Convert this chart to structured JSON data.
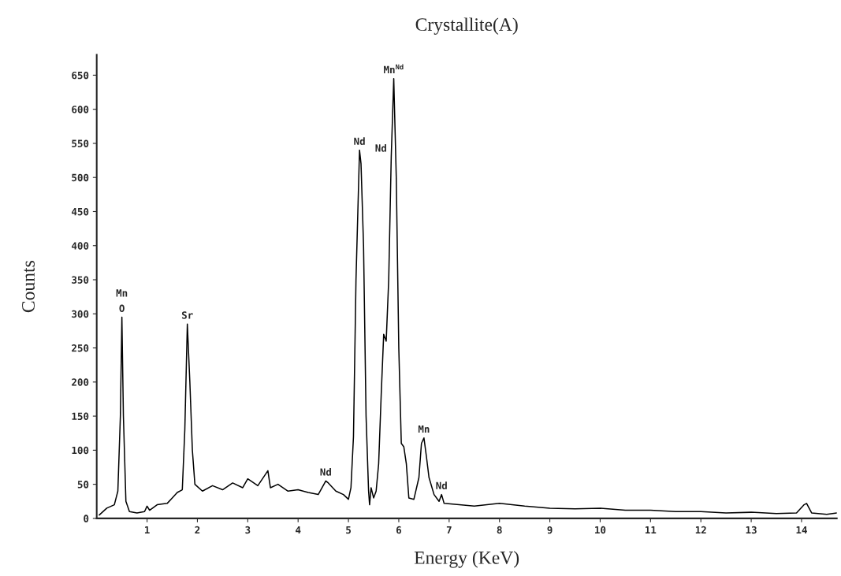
{
  "chart_data": {
    "type": "line",
    "title": "Crystallite(A)",
    "xlabel": "Energy (KeV)",
    "ylabel": "Counts",
    "x": [
      0.05,
      0.2,
      0.35,
      0.42,
      0.47,
      0.5,
      0.53,
      0.58,
      0.65,
      0.8,
      0.95,
      1.0,
      1.05,
      1.2,
      1.4,
      1.5,
      1.6,
      1.7,
      1.75,
      1.8,
      1.85,
      1.9,
      1.95,
      2.1,
      2.3,
      2.5,
      2.7,
      2.9,
      3.0,
      3.2,
      3.4,
      3.45,
      3.6,
      3.8,
      4.0,
      4.2,
      4.4,
      4.55,
      4.6,
      4.75,
      4.9,
      5.0,
      5.05,
      5.1,
      5.15,
      5.22,
      5.25,
      5.3,
      5.35,
      5.4,
      5.42,
      5.45,
      5.5,
      5.55,
      5.6,
      5.65,
      5.7,
      5.75,
      5.8,
      5.85,
      5.9,
      5.95,
      6.0,
      6.05,
      6.1,
      6.15,
      6.2,
      6.3,
      6.4,
      6.45,
      6.5,
      6.55,
      6.6,
      6.7,
      6.8,
      6.85,
      6.9,
      7.2,
      7.5,
      8.0,
      8.5,
      9.0,
      9.5,
      10.0,
      10.5,
      11.0,
      11.5,
      12.0,
      12.5,
      13.0,
      13.5,
      13.9,
      14.05,
      14.1,
      14.2,
      14.5,
      14.7
    ],
    "series": [
      {
        "color": "#000000",
        "values": [
          5,
          15,
          20,
          40,
          150,
          295,
          150,
          25,
          10,
          8,
          10,
          18,
          12,
          20,
          22,
          30,
          38,
          42,
          130,
          285,
          200,
          100,
          50,
          40,
          48,
          42,
          52,
          45,
          58,
          48,
          70,
          45,
          50,
          40,
          42,
          38,
          35,
          55,
          52,
          40,
          35,
          28,
          45,
          120,
          350,
          540,
          520,
          400,
          150,
          40,
          20,
          45,
          30,
          40,
          80,
          180,
          270,
          260,
          350,
          530,
          645,
          500,
          250,
          110,
          105,
          80,
          30,
          28,
          60,
          110,
          118,
          90,
          60,
          35,
          25,
          35,
          22,
          20,
          18,
          22,
          18,
          15,
          14,
          15,
          12,
          12,
          10,
          10,
          8,
          9,
          7,
          8,
          20,
          22,
          8,
          6,
          8
        ]
      }
    ],
    "xlim": [
      0,
      14.7
    ],
    "ylim": [
      0,
      680
    ],
    "xticks": [
      1,
      2,
      3,
      4,
      5,
      6,
      7,
      8,
      9,
      10,
      11,
      12,
      13,
      14
    ],
    "yticks": [
      0,
      50,
      100,
      150,
      200,
      250,
      300,
      350,
      400,
      450,
      500,
      550,
      600,
      650
    ],
    "grid": false,
    "annotations": [
      {
        "text": "O",
        "x": 0.5,
        "y": 295
      },
      {
        "text": "Mn",
        "x": 0.5,
        "y": 295
      },
      {
        "text": "Sr",
        "x": 1.8,
        "y": 285
      },
      {
        "text": "Nd",
        "x": 4.55,
        "y": 55
      },
      {
        "text": "Nd",
        "x": 5.22,
        "y": 540
      },
      {
        "text": "Nd",
        "x": 5.85,
        "y": 530
      },
      {
        "text": "Mn$^{Nd}$",
        "x": 5.9,
        "y": 645
      },
      {
        "text": "Mn",
        "x": 6.5,
        "y": 118
      },
      {
        "text": "Nd",
        "x": 6.85,
        "y": 35
      }
    ]
  }
}
